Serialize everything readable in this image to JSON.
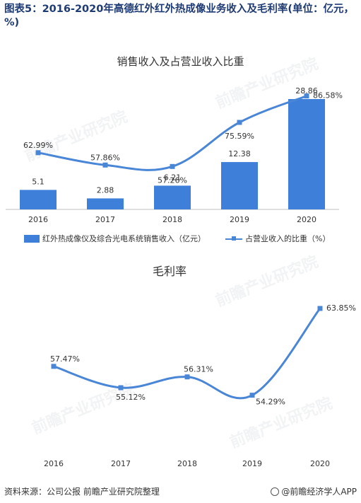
{
  "figure_title": "图表5：2016-2020年高德红外红外热成像业务收入及毛利率(单位：亿元，%)",
  "source": "资料来源：公司公报  前瞻产业研究院整理",
  "brand": "@前瞻经济学人APP",
  "watermark": "前瞻产业研究院",
  "colors": {
    "bar": "#3d7fd9",
    "line": "#4a86d6",
    "title": "#1f3b73"
  },
  "chart_data": [
    {
      "type": "bar",
      "title": "销售收入及占营业收入比重",
      "categories": [
        "2016",
        "2017",
        "2018",
        "2019",
        "2020"
      ],
      "series": [
        {
          "name": "红外热成像仪及综合光电系统销售收入（亿元）",
          "type": "bar",
          "values": [
            5.1,
            2.88,
            6.21,
            12.38,
            28.86
          ]
        },
        {
          "name": "占营业收入的比重（%）",
          "type": "line",
          "values": [
            62.99,
            57.86,
            57.26,
            75.59,
            86.58
          ],
          "labels": [
            "62.99%",
            "57.86%",
            "57.26%",
            "75.59%",
            "86.58%"
          ]
        }
      ],
      "bar_labels": [
        "5.1",
        "2.88",
        "6.21",
        "12.38",
        "28.86"
      ],
      "legend": "bottom"
    },
    {
      "type": "line",
      "title": "毛利率",
      "categories": [
        "2016",
        "2017",
        "2018",
        "2019",
        "2020"
      ],
      "series": [
        {
          "name": "毛利率",
          "values": [
            57.47,
            55.12,
            56.31,
            54.29,
            63.85
          ],
          "labels": [
            "57.47%",
            "55.12%",
            "56.31%",
            "54.29%",
            "63.85%"
          ]
        }
      ],
      "legend": "none"
    }
  ]
}
